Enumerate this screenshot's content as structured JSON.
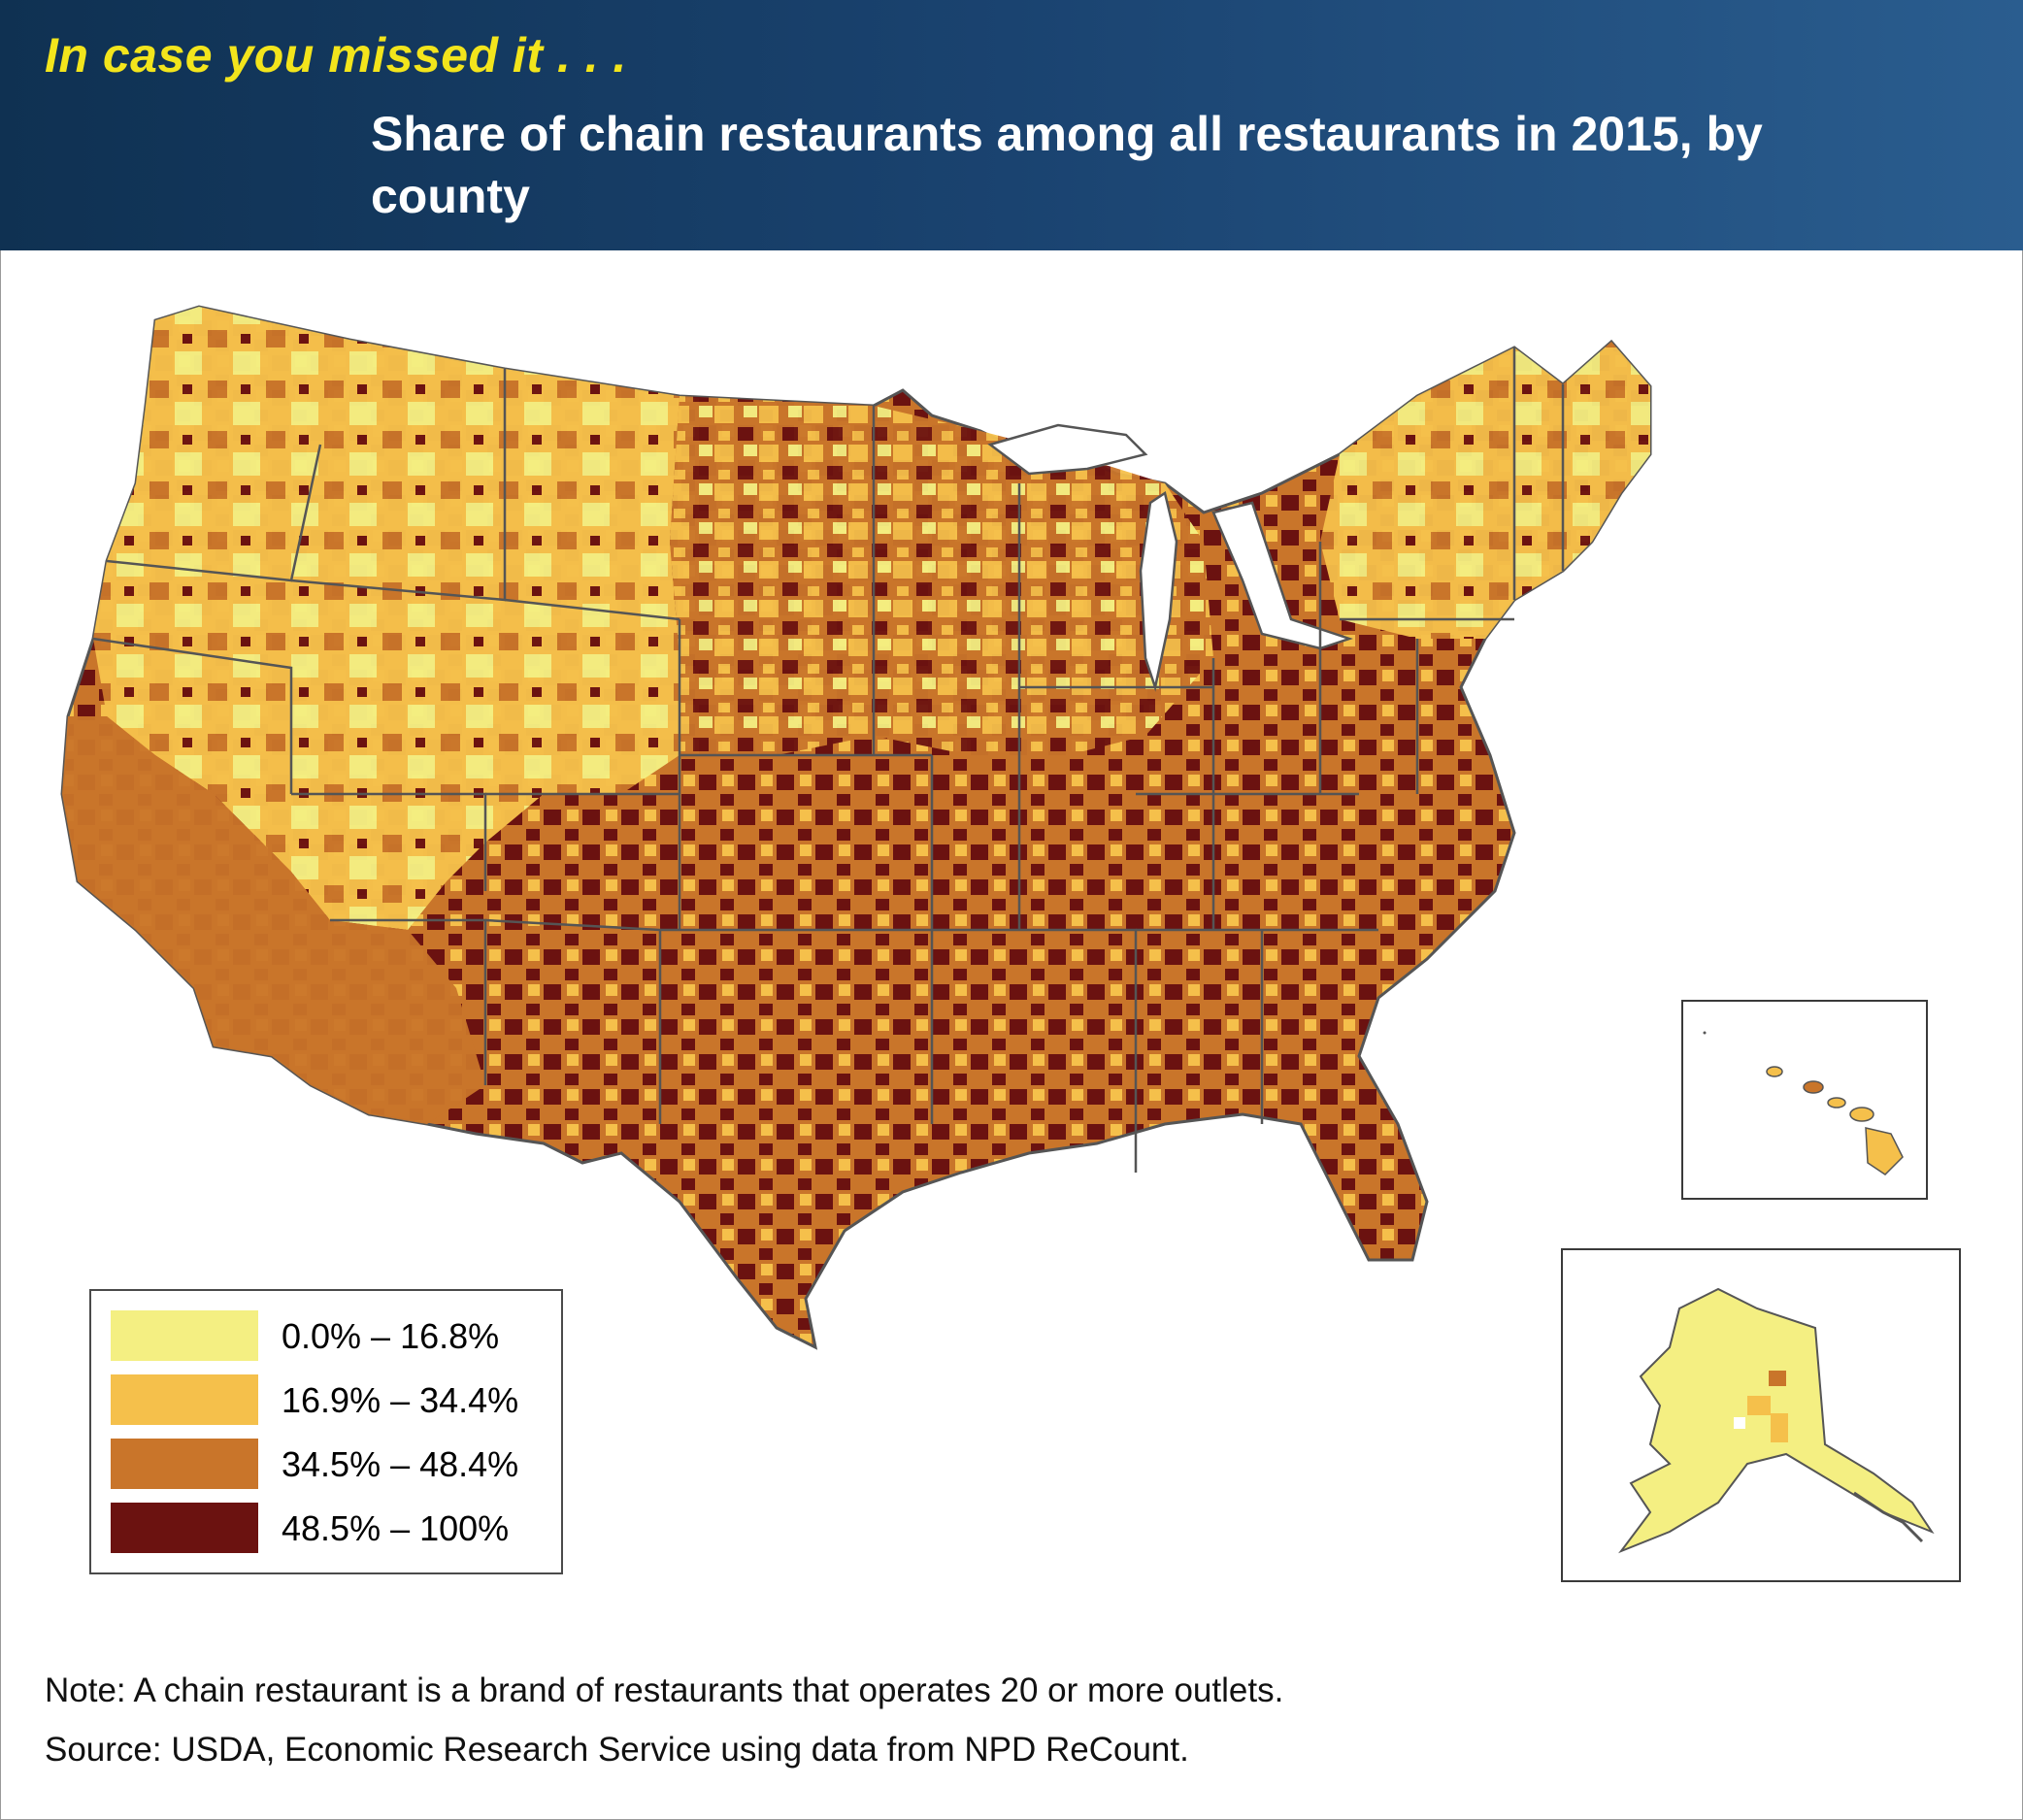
{
  "header": {
    "kicker": "In case you missed it . . .",
    "title": "Share of chain restaurants among all restaurants in 2015, by county"
  },
  "legend": {
    "items": [
      {
        "label": "0.0% – 16.8%",
        "color": "#f4ef82"
      },
      {
        "label": "16.9% – 34.4%",
        "color": "#f5c04b"
      },
      {
        "label": "34.5% – 48.4%",
        "color": "#c9752a"
      },
      {
        "label": "48.5% – 100%",
        "color": "#6b1210"
      }
    ]
  },
  "insets": {
    "hawaii": "hawaii-inset",
    "alaska": "alaska-inset"
  },
  "colors": {
    "header_gradient_start": "#0f3152",
    "header_gradient_end": "#2a5d8f",
    "kicker": "#f3e51c",
    "state_border": "#555555"
  },
  "footer": {
    "note": "Note: A chain restaurant is a brand of restaurants that operates 20 or more outlets.",
    "source": "Source: USDA, Economic Research Service using data from NPD ReCount."
  }
}
